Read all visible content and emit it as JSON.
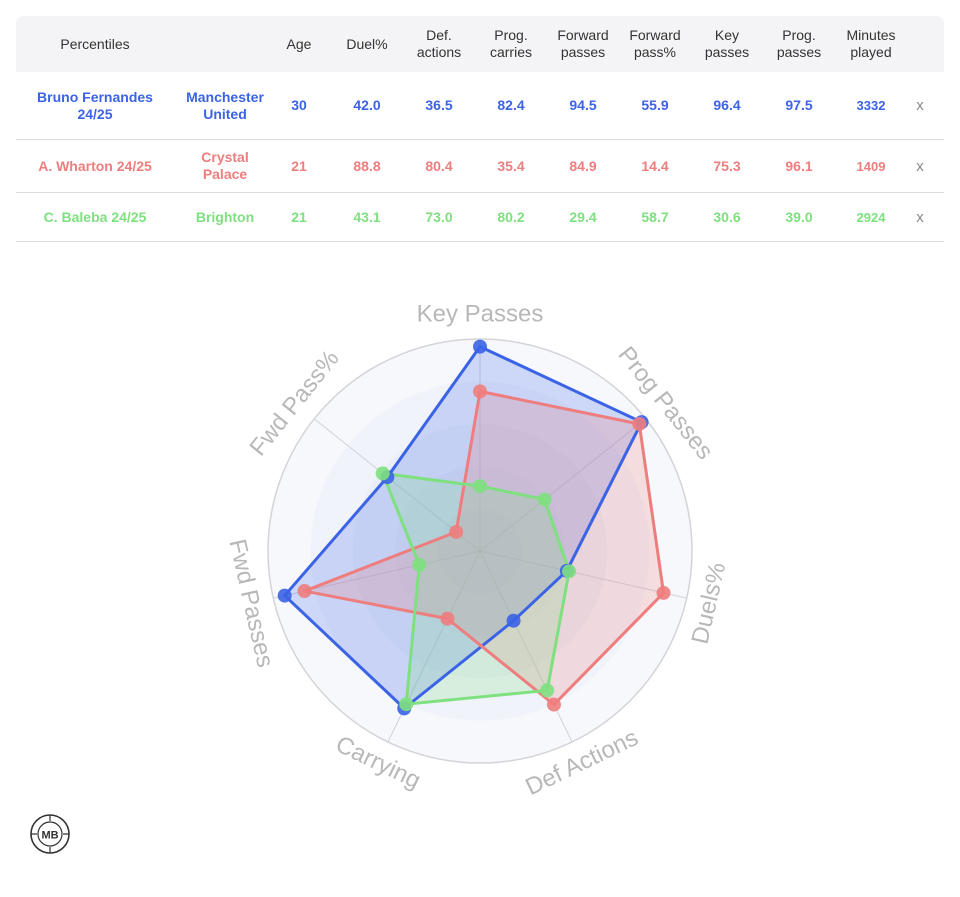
{
  "table": {
    "headers": [
      {
        "key": "label",
        "text": "Percentiles"
      },
      {
        "key": "team",
        "text": ""
      },
      {
        "key": "age",
        "text": "Age"
      },
      {
        "key": "duel",
        "text": "Duel%"
      },
      {
        "key": "def",
        "text": "Def.\nactions"
      },
      {
        "key": "prog_carries",
        "text": "Prog.\ncarries"
      },
      {
        "key": "fwd_passes",
        "text": "Forward\npasses"
      },
      {
        "key": "fwd_pass_pct",
        "text": "Forward\npass%"
      },
      {
        "key": "key_passes",
        "text": "Key\npasses"
      },
      {
        "key": "prog_passes",
        "text": "Prog.\npasses"
      },
      {
        "key": "minutes",
        "text": "Minutes\nplayed"
      }
    ],
    "rows": [
      {
        "player": "Bruno Fernandes\n24/25",
        "team": "Manchester\nUnited",
        "age": "30",
        "duel": "42.0",
        "def": "36.5",
        "prog_carries": "82.4",
        "fwd_passes": "94.5",
        "fwd_pass_pct": "55.9",
        "key_passes": "96.4",
        "prog_passes": "97.5",
        "minutes": "3332",
        "remove": "x",
        "color": "#3b63e6"
      },
      {
        "player": "A. Wharton 24/25",
        "team": "Crystal\nPalace",
        "age": "21",
        "duel": "88.8",
        "def": "80.4",
        "prog_carries": "35.4",
        "fwd_passes": "84.9",
        "fwd_pass_pct": "14.4",
        "key_passes": "75.3",
        "prog_passes": "96.1",
        "minutes": "1409",
        "remove": "x",
        "color": "#ee7d7d"
      },
      {
        "player": "C. Baleba 24/25",
        "team": "Brighton",
        "age": "21",
        "duel": "43.1",
        "def": "73.0",
        "prog_carries": "80.2",
        "fwd_passes": "29.4",
        "fwd_pass_pct": "58.7",
        "key_passes": "30.6",
        "prog_passes": "39.0",
        "minutes": "2924",
        "remove": "x",
        "color": "#7ee07e"
      }
    ]
  },
  "chart_data": {
    "type": "radar",
    "axes": [
      "Key Passes",
      "Prog Passes",
      "Duels%",
      "Def Actions",
      "Carrying",
      "Fwd Passes",
      "Fwd Pass%"
    ],
    "range": [
      0,
      100
    ],
    "series": [
      {
        "name": "Bruno Fernandes 24/25",
        "color": "#3b63e6",
        "values": [
          96.4,
          97.5,
          42.0,
          36.5,
          82.4,
          94.5,
          55.9
        ]
      },
      {
        "name": "A. Wharton 24/25",
        "color": "#ee7d7d",
        "values": [
          75.3,
          96.1,
          88.8,
          80.4,
          35.4,
          84.9,
          14.4
        ]
      },
      {
        "name": "C. Baleba 24/25",
        "color": "#7ee07e",
        "values": [
          30.6,
          39.0,
          43.1,
          73.0,
          80.2,
          29.4,
          58.7
        ]
      }
    ]
  },
  "logo": {
    "text": "MB"
  }
}
